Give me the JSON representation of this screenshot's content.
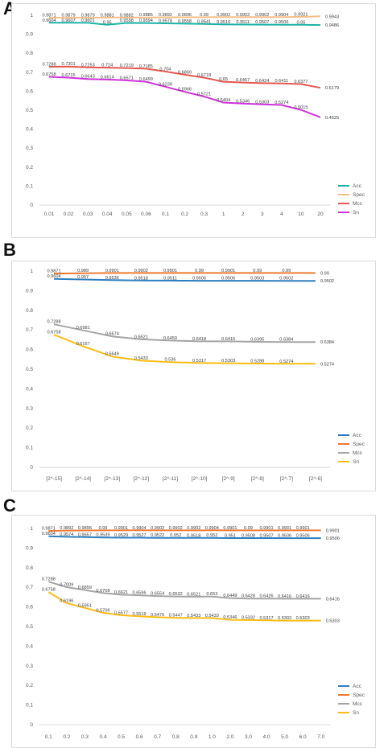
{
  "panels": [
    {
      "letter": "A"
    },
    {
      "letter": "B"
    },
    {
      "letter": "C"
    }
  ],
  "chart_data": [
    {
      "type": "line",
      "categories": [
        "0.01",
        "0.02",
        "0.03",
        "0.04",
        "0.05",
        "0.06",
        "0.1",
        "0.2",
        "0.3",
        "1",
        "2",
        "3",
        "4",
        "10",
        "20"
      ],
      "ylim": [
        0,
        1
      ],
      "yticks": [
        "0",
        "0.1",
        "0.2",
        "0.3",
        "0.4",
        "0.5",
        "0.6",
        "0.7",
        "0.8",
        "0.9",
        "1"
      ],
      "grid": false,
      "legend": "bottom-right",
      "series": [
        {
          "name": "Acc",
          "color": "#1bb3a6",
          "values": [
            0.9604,
            0.9607,
            0.9601,
            0.95,
            0.9598,
            0.9594,
            0.9578,
            0.9558,
            0.9541,
            0.9516,
            0.9511,
            0.9507,
            0.9506,
            0.95,
            0.9486
          ],
          "labels": [
            "0.9604",
            "0.9607",
            "0.9601",
            "0.95",
            "0.9598",
            "0.9594",
            "0.9578",
            "0.9558",
            "0.9541",
            "0.9516",
            "0.9511",
            "0.9507",
            "0.9506",
            "0.95",
            "0.9486"
          ]
        },
        {
          "name": "Spec",
          "color": "#f6be86",
          "values": [
            0.9871,
            0.9879,
            0.9879,
            0.9881,
            0.9882,
            0.9885,
            0.9892,
            0.9896,
            0.99,
            0.9902,
            0.9902,
            0.9902,
            0.9904,
            0.9921,
            0.9943
          ],
          "labels": [
            "0.9871",
            "0.9879",
            "0.9879",
            "0.9881",
            "0.9882",
            "0.9885",
            "0.9892",
            "0.9896",
            "0.99",
            "0.9902",
            "0.9902",
            "0.9902",
            "0.9904",
            "0.9921",
            "0.9943"
          ]
        },
        {
          "name": "Mcc",
          "color": "#e5574f",
          "values": [
            0.7288,
            0.7301,
            0.7253,
            0.724,
            0.7219,
            0.7185,
            0.704,
            0.6869,
            0.6718,
            0.65,
            0.6457,
            0.6424,
            0.6411,
            0.6377,
            0.6179
          ],
          "labels": [
            "0.7288",
            "0.7301",
            "0.7253",
            "0.724",
            "0.7219",
            "0.7185",
            "0.704",
            "0.6869",
            "0.6718",
            "0.65",
            "0.6457",
            "0.6424",
            "0.6411",
            "0.6377",
            "0.6179"
          ]
        },
        {
          "name": "Sn",
          "color": "#cf32d8",
          "values": [
            0.6758,
            0.6715,
            0.6643,
            0.6614,
            0.6571,
            0.6499,
            0.6239,
            0.5966,
            0.5721,
            0.5404,
            0.5346,
            0.5303,
            0.5274,
            0.5015,
            0.4625
          ],
          "labels": [
            "0.6758",
            "0.6715",
            "0.6643",
            "0.6614",
            "0.6571",
            "0.6499",
            "0.6239",
            "0.5966",
            "0.5721",
            "0.5404",
            "0.5346",
            "0.5303",
            "0.5274",
            "0.5015",
            "0.4625"
          ]
        }
      ]
    },
    {
      "type": "line",
      "categories": [
        "[2^-15]",
        "[2^-14]",
        "[2^-13]",
        "[2^-12]",
        "[2^-11]",
        "[2^-10]",
        "[2^-9]",
        "[2^-8]",
        "[2^-7]",
        "[2^-6]"
      ],
      "ylim": [
        0,
        1
      ],
      "yticks": [
        "0",
        "0.1",
        "0.2",
        "0.3",
        "0.4",
        "0.5",
        "0.6",
        "0.7",
        "0.8",
        "0.9",
        "1"
      ],
      "grid": false,
      "legend": "bottom-right",
      "series": [
        {
          "name": "Acc",
          "color": "#2e7ebf",
          "values": [
            0.9604,
            0.957,
            0.9536,
            0.9518,
            0.9511,
            0.9506,
            0.9506,
            0.9503,
            0.9502,
            0.9502
          ],
          "labels": [
            "0.9604",
            "0.957",
            "0.9536",
            "0.9518",
            "0.9511",
            "0.9506",
            "0.9506",
            "0.9503",
            "0.9502",
            "0.9502"
          ]
        },
        {
          "name": "Spec",
          "color": "#ef7a2e",
          "values": [
            0.9871,
            0.989,
            0.9901,
            0.9902,
            0.9901,
            0.99,
            0.9901,
            0.99,
            0.99,
            0.99
          ],
          "labels": [
            "0.9871",
            "0.989",
            "0.9901",
            "0.9902",
            "0.9901",
            "0.99",
            "0.9901",
            "0.99",
            "0.99",
            "0.99"
          ]
        },
        {
          "name": "Mcc",
          "color": "#a5a5a5",
          "values": [
            0.7288,
            0.6981,
            0.6674,
            0.6521,
            0.6459,
            0.6418,
            0.6416,
            0.6395,
            0.6384,
            0.6384
          ],
          "labels": [
            "0.7288",
            "0.6981",
            "0.6674",
            "0.6521",
            "0.6459",
            "0.6418",
            "0.6416",
            "0.6395",
            "0.6384",
            "0.6384"
          ]
        },
        {
          "name": "Sn",
          "color": "#fbbc14",
          "values": [
            0.6758,
            0.6167,
            0.5649,
            0.5433,
            0.536,
            0.5317,
            0.5303,
            0.5288,
            0.5274,
            0.5274
          ],
          "labels": [
            "0.6758",
            "0.6167",
            "0.5649",
            "0.5433",
            "0.536",
            "0.5317",
            "0.5303",
            "0.5288",
            "0.5274",
            "0.5274"
          ]
        }
      ]
    },
    {
      "type": "line",
      "categories": [
        "0.1",
        "0.2",
        "0.3",
        "0.4",
        "0.5",
        "0.6",
        "0.7",
        "0.8",
        "0.9",
        "1.0",
        "2.0",
        "3.0",
        "4.0",
        "5.0",
        "6.0",
        "7.0"
      ],
      "ylim": [
        0,
        1
      ],
      "yticks": [
        "0",
        "0.1",
        "0.2",
        "0.3",
        "0.4",
        "0.5",
        "0.6",
        "0.7",
        "0.8",
        "0.9",
        "1"
      ],
      "grid": false,
      "legend": "bottom-right",
      "series": [
        {
          "name": "Acc",
          "color": "#2e7ebf",
          "values": [
            0.9604,
            0.9574,
            0.9557,
            0.9539,
            0.9529,
            0.9527,
            0.9522,
            0.952,
            0.9518,
            0.952,
            0.951,
            0.9508,
            0.9507,
            0.9506,
            0.9506,
            0.9506
          ],
          "labels": [
            "0.9604",
            "0.9574",
            "0.9557",
            "0.9539",
            "0.9529",
            "0.9527",
            "0.9522",
            "0.952",
            "0.9518",
            "0.952",
            "0.951",
            "0.9508",
            "0.9507",
            "0.9506",
            "0.9506",
            "0.9506"
          ]
        },
        {
          "name": "Spec",
          "color": "#ef7a2e",
          "values": [
            0.9871,
            0.9892,
            0.9896,
            0.99,
            0.9901,
            0.9904,
            0.9902,
            0.9902,
            0.9902,
            0.9904,
            0.9901,
            0.99,
            0.9901,
            0.9901,
            0.9901,
            0.9901
          ],
          "labels": [
            "0.9871",
            "0.9892",
            "0.9896",
            "0.99",
            "0.9901",
            "0.9904",
            "0.9902",
            "0.9902",
            "0.9902",
            "0.9904",
            "0.9901",
            "0.99",
            "0.9901",
            "0.9901",
            "0.9901",
            "0.9901"
          ]
        },
        {
          "name": "Mcc",
          "color": "#a5a5a5",
          "values": [
            0.7288,
            0.7009,
            0.6859,
            0.6708,
            0.6621,
            0.6596,
            0.6554,
            0.6532,
            0.6521,
            0.653,
            0.6449,
            0.6428,
            0.6426,
            0.6416,
            0.6416,
            0.6416
          ],
          "labels": [
            "0.7288",
            "0.7009",
            "0.6859",
            "0.6708",
            "0.6621",
            "0.6596",
            "0.6554",
            "0.6532",
            "0.6521",
            "0.653",
            "0.6449",
            "0.6428",
            "0.6426",
            "0.6416",
            "0.6416",
            "0.6416"
          ]
        },
        {
          "name": "Sn",
          "color": "#fbbc14",
          "values": [
            0.6758,
            0.6196,
            0.5951,
            0.5706,
            0.5577,
            0.5519,
            0.5476,
            0.5447,
            0.5433,
            0.5433,
            0.5346,
            0.5332,
            0.5317,
            0.5303,
            0.5303,
            0.5303
          ],
          "labels": [
            "0.6758",
            "0.6196",
            "0.5951",
            "0.5706",
            "0.5577",
            "0.5519",
            "0.5476",
            "0.5447",
            "0.5433",
            "0.5433",
            "0.5346",
            "0.5332",
            "0.5317",
            "0.5303",
            "0.5303",
            "0.5303"
          ]
        }
      ]
    }
  ]
}
